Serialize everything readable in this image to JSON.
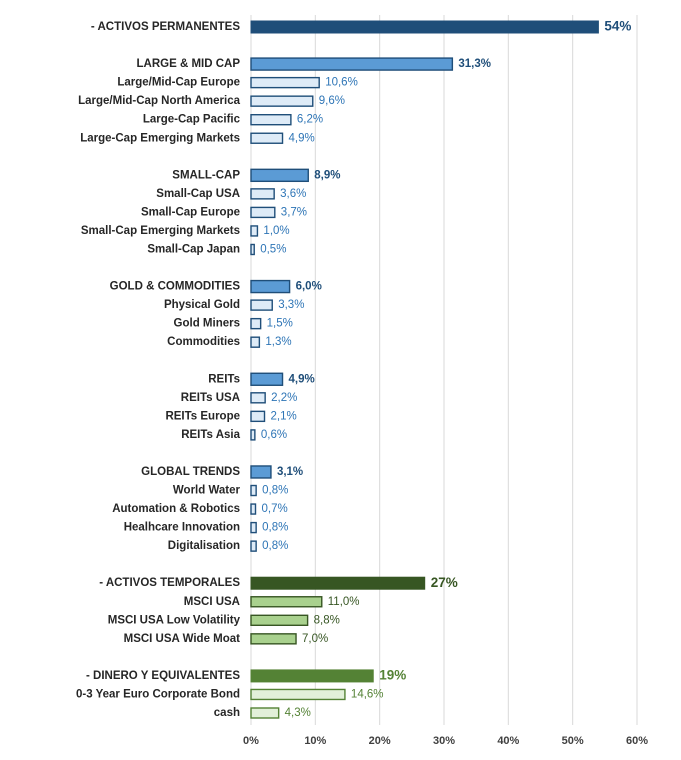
{
  "chart_data": {
    "type": "bar",
    "orientation": "horizontal",
    "categories": [
      "- ACTIVOS PERMANENTES",
      "LARGE & MID CAP",
      "Large/Mid-Cap Europe",
      "Large/Mid-Cap North America",
      "Large-Cap Pacific",
      "Large-Cap Emerging Markets",
      "SMALL-CAP",
      "Small-Cap USA",
      "Small-Cap Europe",
      "Small-Cap Emerging Markets",
      "Small-Cap Japan",
      "GOLD & COMMODITIES",
      "Physical Gold",
      "Gold Miners",
      "Commodities",
      "REITs",
      "REITs USA",
      "REITs Europe",
      "REITs Asia",
      "GLOBAL TRENDS",
      "World Water",
      "Automation & Robotics",
      "Healhcare Innovation",
      "Digitalisation",
      "- ACTIVOS TEMPORALES",
      "MSCI USA",
      "MSCI USA Low Volatility",
      "MSCI USA Wide Moat",
      "- DINERO Y EQUIVALENTES",
      "0-3 Year Euro Corporate Bond",
      "cash"
    ],
    "values": [
      54,
      31.3,
      10.6,
      9.6,
      6.2,
      4.9,
      8.9,
      3.6,
      3.7,
      1.0,
      0.5,
      6.0,
      3.3,
      1.5,
      1.3,
      4.9,
      2.2,
      2.1,
      0.6,
      3.1,
      0.8,
      0.7,
      0.8,
      0.8,
      27,
      11.0,
      8.8,
      7.0,
      19,
      14.6,
      4.3
    ],
    "data_labels": [
      "54%",
      "31,3%",
      "10,6%",
      "9,6%",
      "6,2%",
      "4,9%",
      "8,9%",
      "3,6%",
      "3,7%",
      "1,0%",
      "0,5%",
      "6,0%",
      "3,3%",
      "1,5%",
      "1,3%",
      "4,9%",
      "2,2%",
      "2,1%",
      "0,6%",
      "3,1%",
      "0,8%",
      "0,7%",
      "0,8%",
      "0,8%",
      "27%",
      "11,0%",
      "8,8%",
      "7,0%",
      "19%",
      "14,6%",
      "4,3%"
    ],
    "levels": [
      0,
      1,
      2,
      2,
      2,
      2,
      1,
      2,
      2,
      2,
      2,
      1,
      2,
      2,
      2,
      1,
      2,
      2,
      2,
      1,
      2,
      2,
      2,
      2,
      0,
      2,
      2,
      2,
      0,
      2,
      2
    ],
    "groups": [
      "blue",
      "blue",
      "blue",
      "blue",
      "blue",
      "blue",
      "blue",
      "blue",
      "blue",
      "blue",
      "blue",
      "blue",
      "blue",
      "blue",
      "blue",
      "blue",
      "blue",
      "blue",
      "blue",
      "blue",
      "blue",
      "blue",
      "blue",
      "blue",
      "darkgreen",
      "darkgreen",
      "darkgreen",
      "darkgreen",
      "green",
      "green",
      "green"
    ],
    "xlim": [
      0,
      60
    ],
    "x_ticks": [
      "0%",
      "10%",
      "20%",
      "30%",
      "40%",
      "50%",
      "60%"
    ],
    "grid": "vertical",
    "xlabel": "",
    "ylabel": "",
    "title": ""
  },
  "colors": {
    "blue": {
      "top": "#1f4e79",
      "mid": "#5b9bd5",
      "sub": "#deebf7",
      "stroke": "#1f4e79",
      "label_top": "#1f4e79",
      "label_mid": "#1f4e79",
      "label_sub": "#2e75b6"
    },
    "darkgreen": {
      "top": "#375623",
      "mid": "#375623",
      "sub": "#a9d18e",
      "stroke": "#375623",
      "label_top": "#375623",
      "label_mid": "#375623",
      "label_sub": "#375623"
    },
    "green": {
      "top": "#548235",
      "mid": "#548235",
      "sub": "#e2f0d9",
      "stroke": "#548235",
      "label_top": "#548235",
      "label_mid": "#548235",
      "label_sub": "#548235"
    },
    "category_text": "#262626",
    "tick_text": "#404040",
    "grid": "#d9d9d9"
  }
}
